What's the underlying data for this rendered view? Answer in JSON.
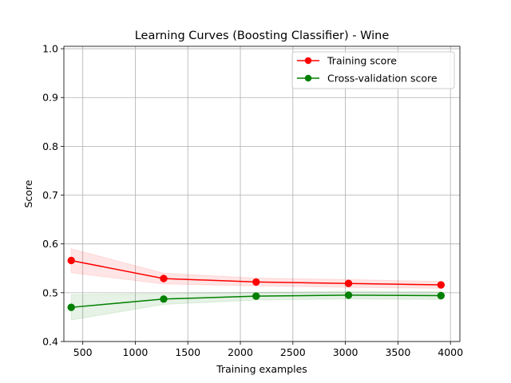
{
  "chart_data": {
    "type": "line",
    "title": "Learning Curves (Boosting Classifier) - Wine",
    "xlabel": "Training examples",
    "ylabel": "Score",
    "xlim": [
      320,
      4090
    ],
    "ylim": [
      0.4,
      1.005
    ],
    "xticks": [
      500,
      1000,
      1500,
      2000,
      2500,
      3000,
      3500,
      4000
    ],
    "yticks": [
      0.4,
      0.5,
      0.6,
      0.7,
      0.8,
      0.9,
      1.0
    ],
    "xtick_labels": [
      "500",
      "1000",
      "1500",
      "2000",
      "2500",
      "3000",
      "3500",
      "4000"
    ],
    "ytick_labels": [
      "0.4",
      "0.5",
      "0.6",
      "0.7",
      "0.8",
      "0.9",
      "1.0"
    ],
    "grid": true,
    "legend_position": "top-right",
    "x": [
      390,
      1270,
      2150,
      3030,
      3910
    ],
    "series": [
      {
        "name": "Training score",
        "color": "#ff0000",
        "band_color": "#ff0000",
        "values": [
          0.566,
          0.529,
          0.522,
          0.519,
          0.516
        ],
        "band_upper": [
          0.59,
          0.54,
          0.53,
          0.527,
          0.523
        ],
        "band_lower": [
          0.541,
          0.518,
          0.514,
          0.511,
          0.509
        ]
      },
      {
        "name": "Cross-validation score",
        "color": "#008000",
        "band_color": "#008000",
        "values": [
          0.47,
          0.487,
          0.493,
          0.495,
          0.494
        ],
        "band_upper": [
          0.496,
          0.498,
          0.501,
          0.503,
          0.502
        ],
        "band_lower": [
          0.444,
          0.476,
          0.485,
          0.487,
          0.486
        ]
      }
    ]
  }
}
